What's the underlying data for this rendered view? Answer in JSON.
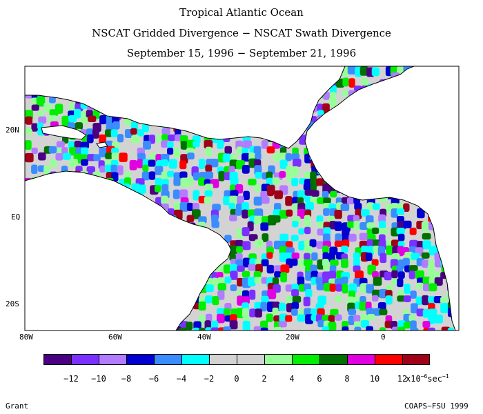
{
  "title": {
    "line1": "Tropical Atlantic Ocean",
    "line2": "NSCAT Gridded Divergence − NSCAT Swath Divergence",
    "line3": "September 15, 1996 − September 21, 1996"
  },
  "map": {
    "lat_labels": [
      "20N",
      "EQ",
      "20S"
    ],
    "lon_labels": [
      "80W",
      "60W",
      "40W",
      "20W",
      "0"
    ],
    "land_color": "#ffffff",
    "ocean_background_color": "#d3d3d3"
  },
  "legend": {
    "colors": [
      "#4b0082",
      "#7b30ff",
      "#b27cff",
      "#0000d0",
      "#3a8cff",
      "#00ffff",
      "#d3d3d3",
      "#d3d3d3",
      "#98ff98",
      "#00ee00",
      "#007000",
      "#e000e0",
      "#ff0000",
      "#a00018"
    ],
    "tick_labels": [
      "−12",
      "−10",
      "−8",
      "−6",
      "−4",
      "−2",
      "0",
      "2",
      "4",
      "6",
      "8",
      "10",
      "12"
    ],
    "units_prefix": "x10",
    "units_exp1": "−6",
    "units_mid": "sec",
    "units_exp2": "−1"
  },
  "footer": {
    "left": "Grant",
    "right": "COAPS−FSU 1999"
  }
}
